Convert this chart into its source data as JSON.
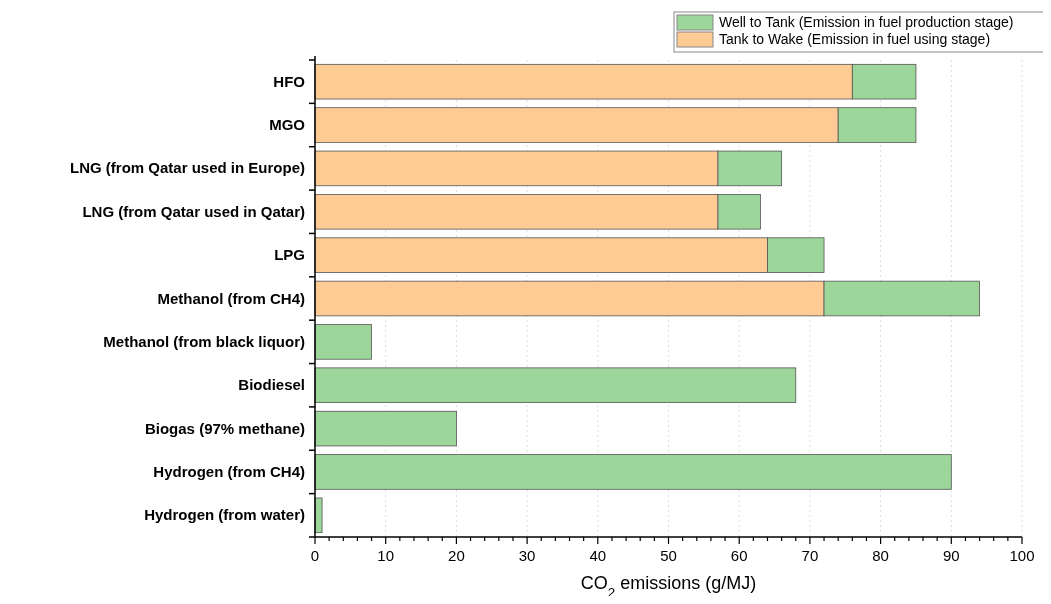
{
  "chart_data": {
    "type": "bar",
    "orientation": "horizontal",
    "stacked": true,
    "categories": [
      "HFO",
      "MGO",
      "LNG (from Qatar used in Europe)",
      "LNG (from Qatar used in Qatar)",
      "LPG",
      "Methanol (from CH4)",
      "Methanol (from black liquor)",
      "Biodiesel",
      "Biogas (97% methane)",
      "Hydrogen (from CH4)",
      "Hydrogen (from water)"
    ],
    "series": [
      {
        "name": "Tank to Wake (Emission in fuel using stage)",
        "color": "#fdcb93",
        "values": [
          76,
          74,
          57,
          57,
          64,
          72,
          null,
          null,
          null,
          null,
          null
        ]
      },
      {
        "name": "Well to Tank (Emission in fuel production stage)",
        "color": "#9dd69b",
        "values": [
          9,
          11,
          9,
          6,
          8,
          22,
          8,
          68,
          20,
          90,
          1
        ]
      }
    ],
    "xlabel": "CO$_{2}$ emissions (g/MJ)",
    "xlim": [
      0,
      100
    ],
    "xticks": [
      0,
      {
        "value": 2,
        "label": null
      },
      {
        "value": 4,
        "label": null
      },
      {
        "value": 6,
        "label": null
      },
      {
        "value": 8,
        "label": null
      },
      10,
      {
        "value": 12,
        "label": null
      },
      {
        "value": 14,
        "label": null
      },
      {
        "value": 16,
        "label": null
      },
      {
        "value": 18,
        "label": null
      },
      20,
      {
        "value": 22,
        "label": null
      },
      {
        "value": 24,
        "label": null
      },
      {
        "value": 26,
        "label": null
      },
      {
        "value": 28,
        "label": null
      },
      30,
      {
        "value": 32,
        "label": null
      },
      {
        "value": 34,
        "label": null
      },
      {
        "value": 36,
        "label": null
      },
      {
        "value": 38,
        "label": null
      },
      40,
      {
        "value": 42,
        "label": null
      },
      {
        "value": 44,
        "label": null
      },
      {
        "value": 46,
        "label": null
      },
      {
        "value": 48,
        "label": null
      },
      50,
      {
        "value": 52,
        "label": null
      },
      {
        "value": 54,
        "label": null
      },
      {
        "value": 56,
        "label": null
      },
      {
        "value": 58,
        "label": null
      },
      60,
      {
        "value": 62,
        "label": null
      },
      {
        "value": 64,
        "label": null
      },
      {
        "value": 66,
        "label": null
      },
      {
        "value": 68,
        "label": null
      },
      70,
      {
        "value": 72,
        "label": null
      },
      {
        "value": 74,
        "label": null
      },
      {
        "value": 76,
        "label": null
      },
      {
        "value": 78,
        "label": null
      },
      80,
      {
        "value": 82,
        "label": null
      },
      {
        "value": 84,
        "label": null
      },
      {
        "value": 86,
        "label": null
      },
      {
        "value": 88,
        "label": null
      },
      90,
      {
        "value": 92,
        "label": null
      },
      {
        "value": 94,
        "label": null
      },
      {
        "value": 96,
        "label": null
      },
      {
        "value": 98,
        "label": null
      },
      100
    ],
    "grid": "x",
    "legend": "top right"
  }
}
